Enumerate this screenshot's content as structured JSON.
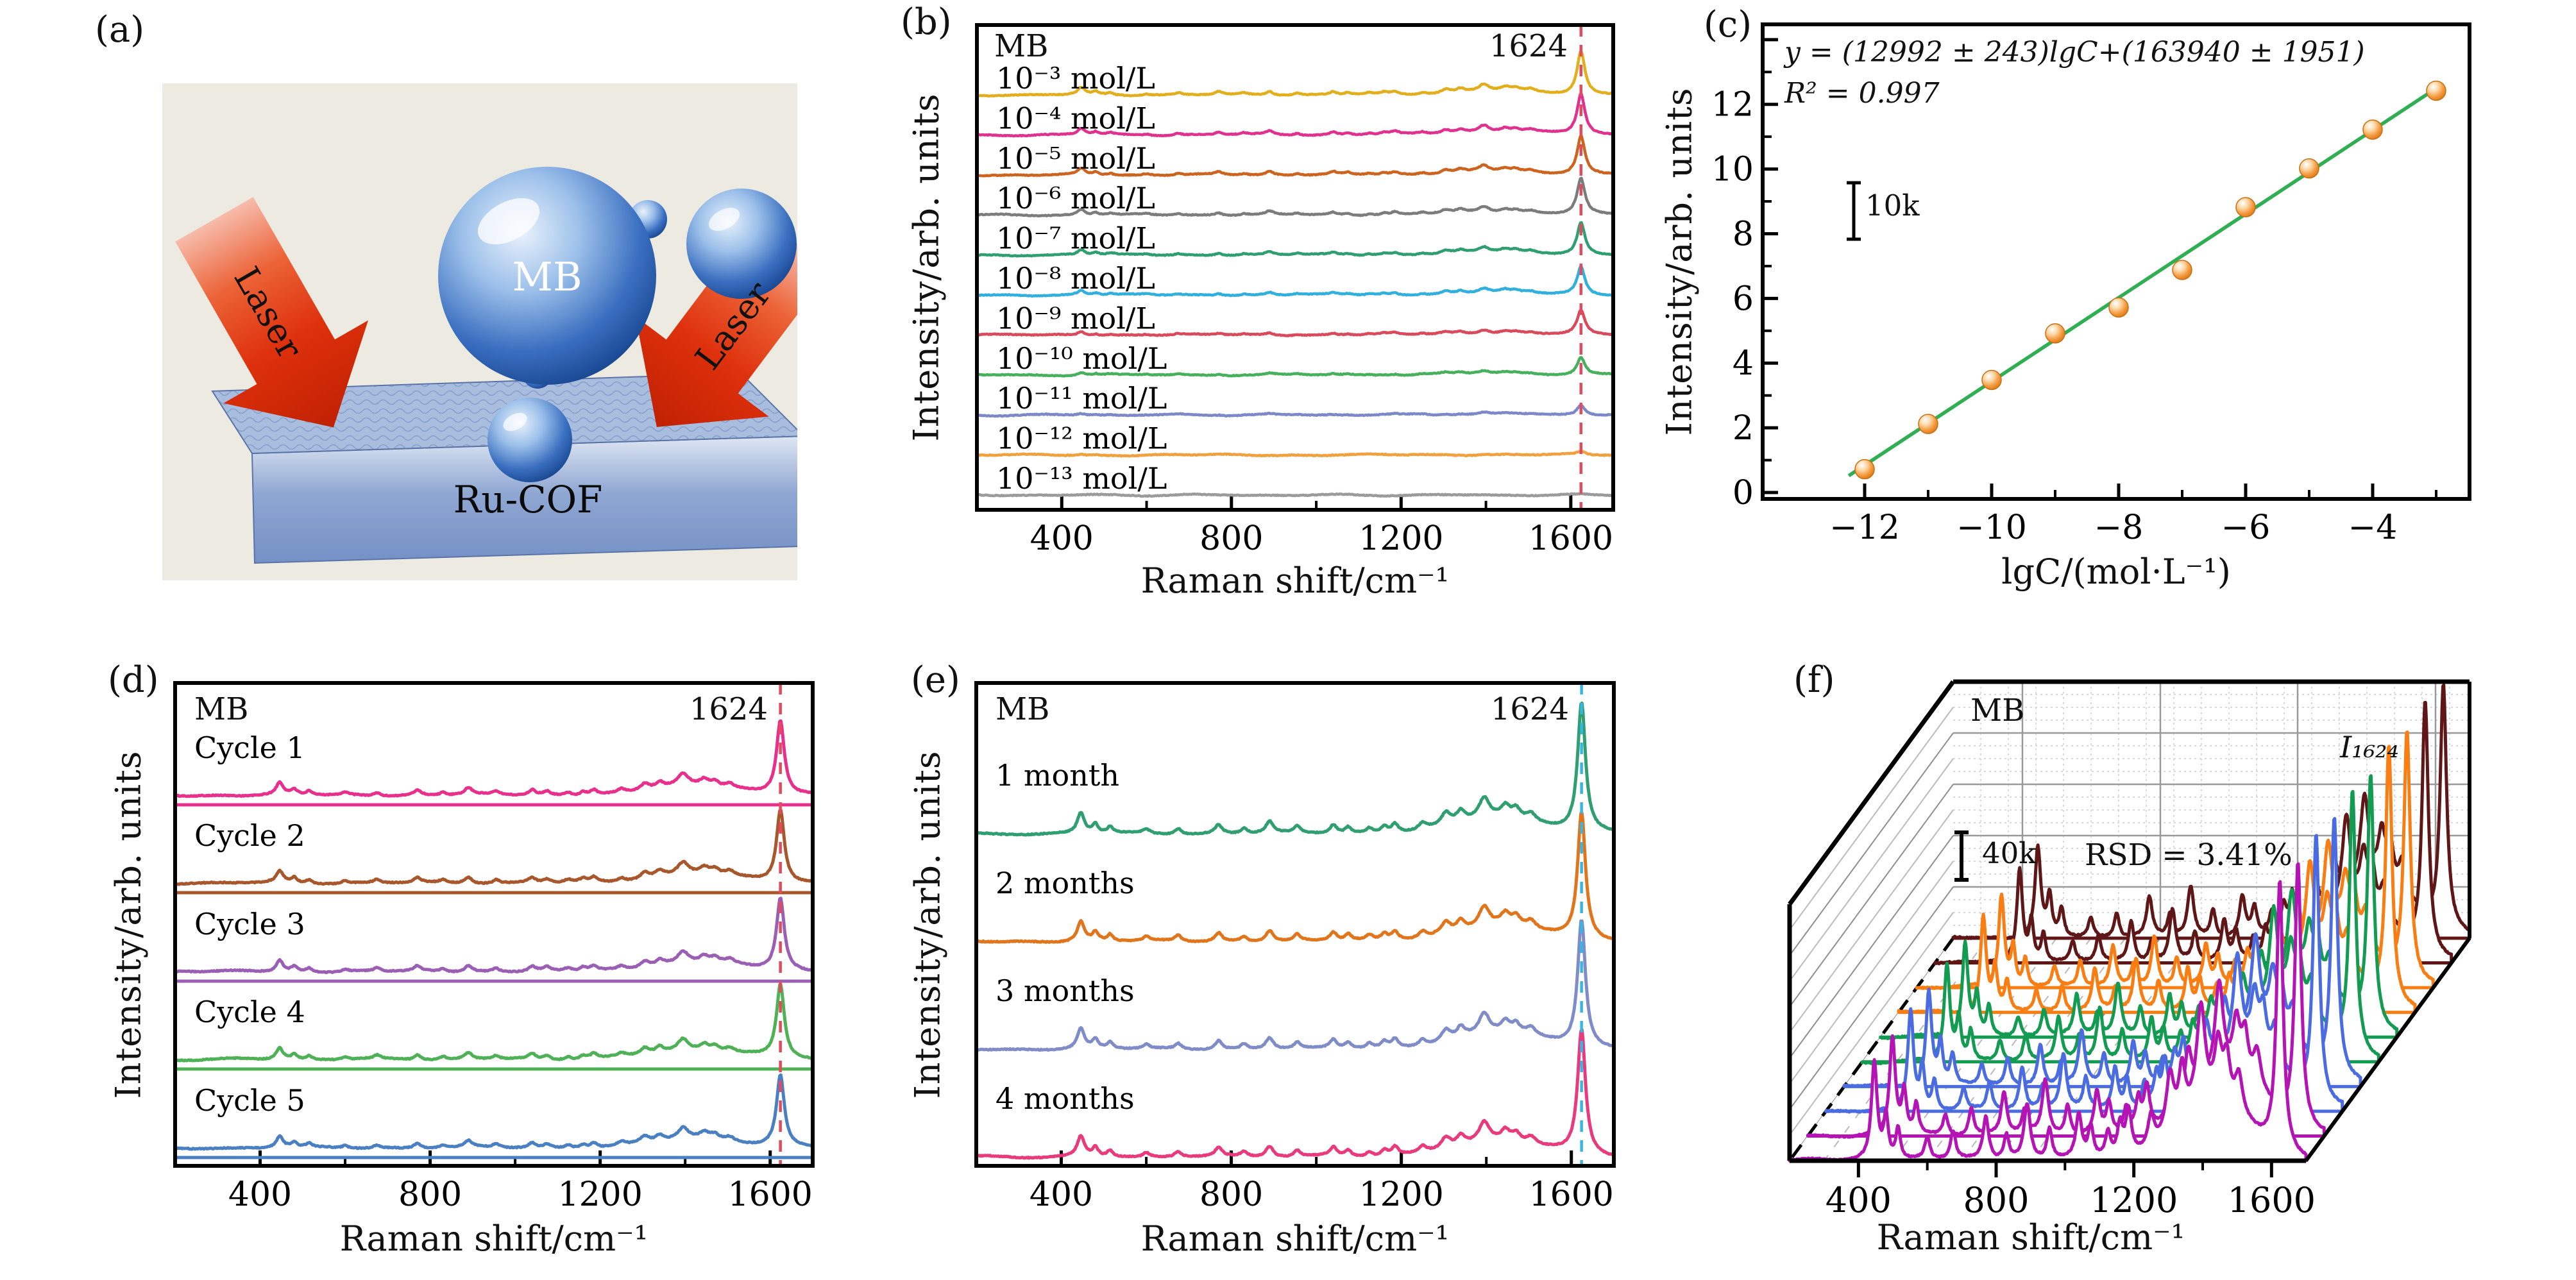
{
  "panels": {
    "a": {
      "label": "(a)",
      "molecule_label": "MB",
      "laser_label": "Laser",
      "substrate_label": "Ru-COF"
    },
    "b": {
      "label": "(b)",
      "annotation": "MB",
      "peak_label": "1624"
    },
    "c": {
      "label": "(c)",
      "equation": "y = (12992 ± 243)lgC+(163940 ± 1951)",
      "r_squared": "R² = 0.997",
      "scale_bar_label": "10k"
    },
    "d": {
      "label": "(d)",
      "annotation": "MB",
      "peak_label": "1624"
    },
    "e": {
      "label": "(e)",
      "annotation": "MB",
      "peak_label": "1624"
    },
    "f": {
      "label": "(f)",
      "annotation": "MB",
      "peak_label": "I₁₆₂₄",
      "scale_bar_label": "40k",
      "rsd_label": "RSD = 3.41%"
    }
  },
  "chart_data": [
    {
      "panel": "b",
      "type": "line",
      "variant": "stacked_raman_spectra",
      "xlabel": "Raman shift/cm⁻¹",
      "ylabel": "Intensity/arb. units",
      "xlim": [
        200,
        1700
      ],
      "x_major_ticks": [
        400,
        800,
        1200,
        1600
      ],
      "x_minor_ticks": [
        600,
        1000,
        1400
      ],
      "marked_peak_cm": 1624,
      "marker_line_color": "#e24a5e",
      "raman_peaks_cm": [
        446,
        480,
        515,
        600,
        675,
        770,
        830,
        890,
        955,
        1040,
        1075,
        1125,
        1160,
        1185,
        1250,
        1305,
        1340,
        1395,
        1445,
        1470,
        1505,
        1624
      ],
      "series": [
        {
          "label": "10⁻³ mol/L",
          "color": "#e2ae1c",
          "peak_height_rel": 1.0
        },
        {
          "label": "10⁻⁴ mol/L",
          "color": "#e0318e",
          "peak_height_rel": 0.93
        },
        {
          "label": "10⁻⁵ mol/L",
          "color": "#cc6420",
          "peak_height_rel": 0.88
        },
        {
          "label": "10⁻⁶ mol/L",
          "color": "#7c7c7c",
          "peak_height_rel": 0.82
        },
        {
          "label": "10⁻⁷ mol/L",
          "color": "#2f9e70",
          "peak_height_rel": 0.74
        },
        {
          "label": "10⁻⁸ mol/L",
          "color": "#31b0dd",
          "peak_height_rel": 0.64
        },
        {
          "label": "10⁻⁹ mol/L",
          "color": "#d84a5c",
          "peak_height_rel": 0.54
        },
        {
          "label": "10⁻¹⁰ mol/L",
          "color": "#47b05d",
          "peak_height_rel": 0.4
        },
        {
          "label": "10⁻¹¹ mol/L",
          "color": "#7c88c8",
          "peak_height_rel": 0.24
        },
        {
          "label": "10⁻¹² mol/L",
          "color": "#f0a03c",
          "peak_height_rel": 0.08
        },
        {
          "label": "10⁻¹³ mol/L",
          "color": "#9b9b9b",
          "peak_height_rel": 0.01
        }
      ]
    },
    {
      "panel": "c",
      "type": "scatter",
      "xlabel": "lgC/(mol·L⁻¹)",
      "ylabel": "Intensity/arb. units",
      "x_major_ticks": [
        -12,
        -10,
        -8,
        -6,
        -4
      ],
      "x_minor_ticks": [
        -11,
        -9,
        -7,
        -5,
        -3
      ],
      "y_major_ticks": [
        0,
        2,
        4,
        6,
        8,
        10,
        12
      ],
      "y_minor_ticks": [
        1,
        3,
        5,
        7,
        9,
        11,
        13
      ],
      "xlim": [
        -12.8,
        -2.45
      ],
      "ylim": [
        0,
        14.6
      ],
      "equation": "y = (12992 ± 243)lgC+(163940 ± 1951)",
      "r_squared": 0.997,
      "scale_bar": {
        "label": "10k",
        "units_per_bar": 1
      },
      "point_color": "#f59a40",
      "line_color": "#2fae52",
      "points": [
        {
          "x": -12,
          "y": 0.72
        },
        {
          "x": -11,
          "y": 2.12
        },
        {
          "x": -10,
          "y": 3.48
        },
        {
          "x": -9,
          "y": 4.92
        },
        {
          "x": -8,
          "y": 5.72
        },
        {
          "x": -7,
          "y": 6.88
        },
        {
          "x": -6,
          "y": 8.82
        },
        {
          "x": -5,
          "y": 10.02
        },
        {
          "x": -4,
          "y": 11.22
        },
        {
          "x": -3,
          "y": 12.42
        }
      ],
      "fit_line": {
        "x1": -12.25,
        "y1": 0.52,
        "x2": -2.92,
        "y2": 12.6
      }
    },
    {
      "panel": "d",
      "type": "line",
      "variant": "stacked_raman_spectra",
      "xlabel": "Raman shift/cm⁻¹",
      "ylabel": "Intensity/arb. units",
      "xlim": [
        200,
        1700
      ],
      "x_major_ticks": [
        400,
        800,
        1200,
        1600
      ],
      "x_minor_ticks": [
        600,
        1000,
        1400
      ],
      "marked_peak_cm": 1624,
      "marker_line_color": "#e24a5e",
      "series": [
        {
          "label": "Cycle 1",
          "color": "#e82f8c"
        },
        {
          "label": "Cycle 2",
          "color": "#a8562b"
        },
        {
          "label": "Cycle 3",
          "color": "#9a5fb5"
        },
        {
          "label": "Cycle 4",
          "color": "#4fb155"
        },
        {
          "label": "Cycle 5",
          "color": "#4a80c2"
        }
      ]
    },
    {
      "panel": "e",
      "type": "line",
      "variant": "stacked_raman_spectra",
      "xlabel": "Raman shift/cm⁻¹",
      "ylabel": "Intensity/arb. units",
      "xlim": [
        200,
        1700
      ],
      "x_major_ticks": [
        400,
        800,
        1200,
        1600
      ],
      "x_minor_ticks": [
        600,
        1000,
        1400
      ],
      "marked_peak_cm": 1624,
      "marker_line_color": "#38b6e0",
      "series": [
        {
          "label": "1 month",
          "color": "#2f9e70"
        },
        {
          "label": "2 months",
          "color": "#e0751c"
        },
        {
          "label": "3 months",
          "color": "#808cc8"
        },
        {
          "label": "4 months",
          "color": "#e83a7c"
        }
      ]
    },
    {
      "panel": "f",
      "type": "line",
      "variant": "waterfall_3d",
      "xlabel": "Raman shift/cm⁻¹",
      "xlim": [
        200,
        1700
      ],
      "x_major_ticks": [
        400,
        800,
        1200,
        1600
      ],
      "x_minor_ticks": [
        600,
        1000,
        1400
      ],
      "annotation": "MB",
      "peak_label": "I₁₆₂₄",
      "scale_bar": "40k",
      "rsd": "RSD = 3.41%",
      "num_spectra": 10,
      "colors_front_to_back": [
        "#b414b4",
        "#b414b4",
        "#4a6ce0",
        "#4a6ce0",
        "#139b52",
        "#139b52",
        "#f87d12",
        "#f87d12",
        "#5e1616",
        "#5e1616"
      ]
    }
  ]
}
